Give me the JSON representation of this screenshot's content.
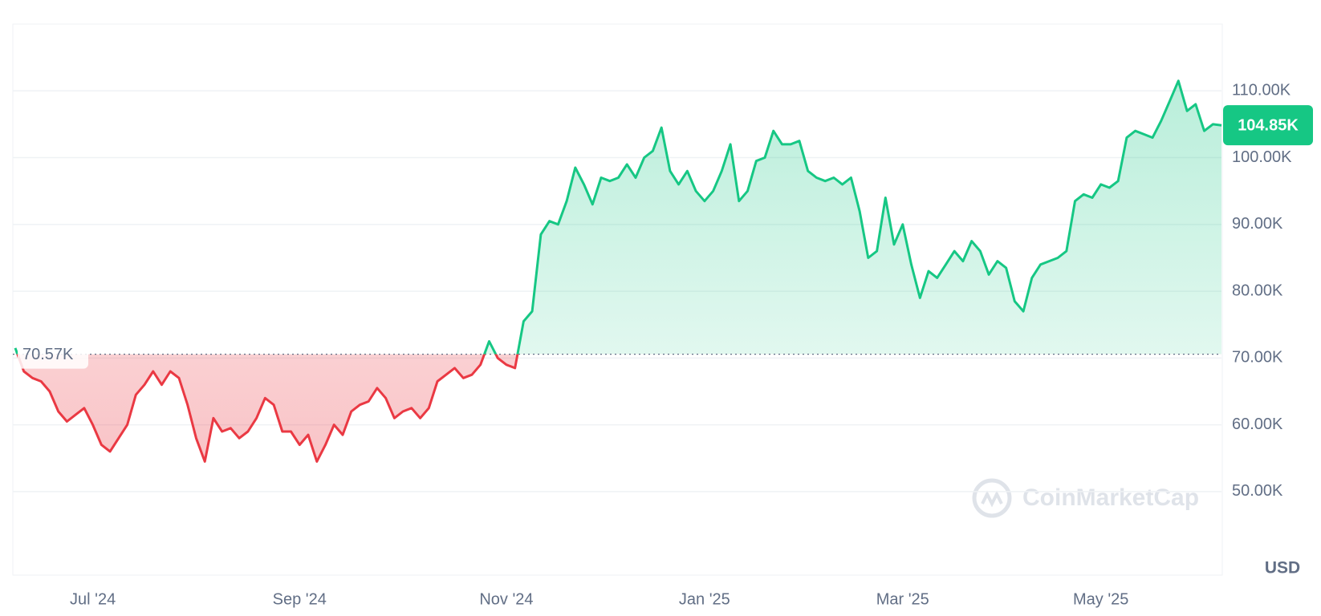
{
  "chart_data": {
    "type": "line",
    "categories": [
      null,
      null,
      null,
      null,
      null,
      null,
      null,
      null,
      null,
      "Jul '24",
      null,
      null,
      null,
      null,
      null,
      null,
      null,
      null,
      null,
      null,
      null,
      null,
      null,
      null,
      null,
      null,
      null,
      null,
      null,
      null,
      null,
      null,
      null,
      "Sep '24",
      null,
      null,
      null,
      null,
      null,
      null,
      null,
      null,
      null,
      null,
      null,
      null,
      null,
      null,
      null,
      null,
      null,
      null,
      null,
      null,
      null,
      null,
      null,
      "Nov '24",
      null,
      null,
      null,
      null,
      null,
      null,
      null,
      null,
      null,
      null,
      null,
      null,
      null,
      null,
      null,
      null,
      null,
      null,
      null,
      null,
      null,
      null,
      "Jan '25",
      null,
      null,
      null,
      null,
      null,
      null,
      null,
      null,
      null,
      null,
      null,
      null,
      null,
      null,
      null,
      null,
      null,
      null,
      null,
      null,
      null,
      null,
      "Mar '25",
      null,
      null,
      null,
      null,
      null,
      null,
      null,
      null,
      null,
      null,
      null,
      null,
      null,
      null,
      null,
      null,
      null,
      null,
      null,
      null,
      null,
      null,
      "May '25",
      null,
      null,
      null,
      null,
      null,
      null,
      null,
      null,
      null,
      null,
      null,
      null,
      null,
      null
    ],
    "series": [
      {
        "up_color": "#16c784",
        "down_color": "#ea3943",
        "values": [
          71500,
          68000,
          67000,
          66500,
          65000,
          62000,
          60500,
          61500,
          62500,
          60000,
          57000,
          56000,
          58000,
          60000,
          64500,
          66000,
          68000,
          66000,
          68000,
          67000,
          63000,
          58000,
          54500,
          61000,
          59000,
          59500,
          58000,
          59000,
          61000,
          64000,
          63000,
          59000,
          59000,
          57000,
          58500,
          54500,
          57000,
          60000,
          58500,
          62000,
          63000,
          63500,
          65500,
          64000,
          61000,
          62000,
          62500,
          61000,
          62500,
          66500,
          67500,
          68500,
          67000,
          67500,
          69000,
          72500,
          70000,
          69000,
          68500,
          75500,
          77000,
          88500,
          90500,
          90000,
          93500,
          98500,
          96000,
          93000,
          97000,
          96500,
          97000,
          99000,
          97000,
          100000,
          101000,
          104500,
          98000,
          96000,
          98000,
          95000,
          93500,
          95000,
          98000,
          102000,
          93500,
          95000,
          99500,
          100000,
          104000,
          102000,
          102000,
          102500,
          98000,
          97000,
          96500,
          97000,
          96000,
          97000,
          92000,
          85000,
          86000,
          94000,
          87000,
          90000,
          84000,
          79000,
          83000,
          82000,
          84000,
          86000,
          84500,
          87500,
          86000,
          82500,
          84500,
          83500,
          78500,
          77000,
          82000,
          84000,
          84500,
          85000,
          86000,
          93500,
          94500,
          94000,
          96000,
          95500,
          96500,
          103000,
          104000,
          103500,
          103000,
          105500,
          108500,
          111500,
          107000,
          108000,
          104000,
          105000,
          104850
        ]
      }
    ],
    "reference_line": {
      "value": 70570,
      "label": "70.57K"
    },
    "last_price": {
      "value": 104850,
      "label": "104.85K"
    },
    "ylim": [
      37500,
      120000
    ],
    "yticks": [
      {
        "value": 50000,
        "label": "50.00K"
      },
      {
        "value": 60000,
        "label": "60.00K"
      },
      {
        "value": 70000,
        "label": "70.00K"
      },
      {
        "value": 80000,
        "label": "80.00K"
      },
      {
        "value": 90000,
        "label": "90.00K"
      },
      {
        "value": 100000,
        "label": "100.00K"
      },
      {
        "value": 110000,
        "label": "110.00K"
      }
    ],
    "grid": true,
    "currency": "USD",
    "watermark": "CoinMarketCap"
  }
}
